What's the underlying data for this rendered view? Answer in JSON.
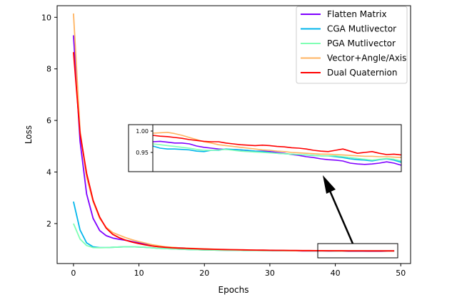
{
  "chart_data": {
    "type": "line",
    "title": "",
    "xlabel": "Epochs",
    "ylabel": "Loss",
    "xlim": [
      -2.5,
      51.5
    ],
    "ylim": [
      0.45,
      10.45
    ],
    "xticks": [
      0,
      10,
      20,
      30,
      40,
      50
    ],
    "xtick_labels": [
      "0",
      "10",
      "20",
      "30",
      "40",
      "50"
    ],
    "yticks": [
      2,
      4,
      6,
      8,
      10
    ],
    "ytick_labels": [
      "2",
      "4",
      "6",
      "8",
      "10"
    ],
    "grid": false,
    "legend_position": "upper right",
    "x": [
      0,
      1,
      2,
      3,
      4,
      5,
      6,
      7,
      8,
      9,
      10,
      11,
      12,
      13,
      14,
      15,
      16,
      17,
      18,
      19,
      20,
      21,
      22,
      23,
      24,
      25,
      26,
      27,
      28,
      29,
      30,
      31,
      32,
      33,
      34,
      35,
      36,
      37,
      38,
      39,
      40,
      41,
      42,
      43,
      44,
      45,
      46,
      47,
      48,
      49
    ],
    "series": [
      {
        "name": "Flatten Matrix",
        "color": "#7f00ff",
        "values": [
          9.3,
          5.2,
          3.15,
          2.2,
          1.73,
          1.53,
          1.44,
          1.39,
          1.35,
          1.3,
          1.25,
          1.2,
          1.15,
          1.12,
          1.09,
          1.07,
          1.06,
          1.05,
          1.03,
          1.02,
          1.01,
          1.0,
          0.99,
          0.985,
          0.975,
          0.975,
          0.97,
          0.965,
          0.96,
          0.96,
          0.955,
          0.955,
          0.95,
          0.95,
          0.945,
          0.94,
          0.94,
          0.935,
          0.935,
          0.93,
          0.93,
          0.93,
          0.925,
          0.925,
          0.925,
          0.925,
          0.925,
          0.925,
          0.93,
          0.93
        ]
      },
      {
        "name": "CGA Mutlivector",
        "color": "#00b5eb",
        "values": [
          2.85,
          1.75,
          1.25,
          1.1,
          1.07,
          1.07,
          1.08,
          1.09,
          1.1,
          1.1,
          1.09,
          1.08,
          1.06,
          1.04,
          1.03,
          1.02,
          1.01,
          1.0,
          0.99,
          0.985,
          0.975,
          0.975,
          0.97,
          0.965,
          0.96,
          0.96,
          0.955,
          0.955,
          0.955,
          0.95,
          0.95,
          0.95,
          0.948,
          0.948,
          0.945,
          0.945,
          0.943,
          0.943,
          0.942,
          0.942,
          0.94,
          0.94,
          0.938,
          0.938,
          0.938,
          0.938,
          0.938,
          0.938,
          0.938,
          0.938
        ]
      },
      {
        "name": "PGA Mutlivector",
        "color": "#80ffb4",
        "values": [
          2.0,
          1.4,
          1.15,
          1.07,
          1.06,
          1.07,
          1.08,
          1.09,
          1.1,
          1.1,
          1.09,
          1.08,
          1.06,
          1.04,
          1.03,
          1.02,
          1.01,
          1.0,
          0.99,
          0.985,
          0.975,
          0.975,
          0.97,
          0.965,
          0.96,
          0.96,
          0.955,
          0.955,
          0.955,
          0.95,
          0.95,
          0.95,
          0.948,
          0.948,
          0.945,
          0.945,
          0.943,
          0.943,
          0.942,
          0.942,
          0.94,
          0.94,
          0.938,
          0.938,
          0.938,
          0.938,
          0.938,
          0.938,
          0.938,
          0.938
        ]
      },
      {
        "name": "Vector+Angle/Axis",
        "color": "#ffb360",
        "values": [
          10.15,
          5.6,
          3.8,
          2.85,
          2.2,
          1.85,
          1.65,
          1.55,
          1.45,
          1.37,
          1.3,
          1.24,
          1.18,
          1.14,
          1.1,
          1.08,
          1.06,
          1.05,
          1.04,
          1.03,
          1.02,
          1.01,
          1.0,
          0.99,
          0.985,
          0.98,
          0.975,
          0.97,
          0.965,
          0.962,
          0.96,
          0.958,
          0.955,
          0.952,
          0.95,
          0.948,
          0.945,
          0.944,
          0.943,
          0.942,
          0.941,
          0.94,
          0.939,
          0.938,
          0.938,
          0.937,
          0.937,
          0.937,
          0.936,
          0.936
        ]
      },
      {
        "name": "Dual Quaternion",
        "color": "#ff0000",
        "values": [
          8.65,
          5.5,
          3.95,
          2.9,
          2.25,
          1.82,
          1.58,
          1.45,
          1.35,
          1.28,
          1.22,
          1.17,
          1.13,
          1.1,
          1.08,
          1.06,
          1.05,
          1.04,
          1.03,
          1.02,
          1.01,
          1.005,
          1.0,
          0.995,
          0.99,
          0.985,
          0.98,
          0.975,
          0.972,
          0.968,
          0.965,
          0.962,
          0.96,
          0.958,
          0.955,
          0.953,
          0.952,
          0.95,
          0.949,
          0.948,
          0.947,
          0.946,
          0.945,
          0.944,
          0.944,
          0.943,
          0.943,
          0.942,
          0.942,
          0.942
        ]
      }
    ],
    "inset": {
      "xlim": [
        37,
        49
      ],
      "ylim": [
        0.905,
        1.015
      ],
      "yticks": [
        0.95,
        1.0
      ],
      "ytick_labels": [
        "0.95",
        "1.00"
      ],
      "series": [
        {
          "name": "Flatten Matrix",
          "values": [
            0.975,
            0.976,
            0.974,
            0.972,
            0.972,
            0.97,
            0.965,
            0.962,
            0.96,
            0.958,
            0.957,
            0.957,
            0.956,
            0.954,
            0.953,
            0.953,
            0.952,
            0.95,
            0.948,
            0.945,
            0.943,
            0.94,
            0.938,
            0.935,
            0.933,
            0.932,
            0.93,
            0.925,
            0.923,
            0.922,
            0.923,
            0.925,
            0.928,
            0.925,
            0.92
          ]
        },
        {
          "name": "CGA Mutlivector",
          "values": [
            0.965,
            0.96,
            0.958,
            0.958,
            0.957,
            0.956,
            0.953,
            0.952,
            0.955,
            0.955,
            0.958,
            0.957,
            0.956,
            0.955,
            0.953,
            0.952,
            0.95,
            0.948,
            0.947,
            0.946,
            0.945,
            0.944,
            0.943,
            0.942,
            0.942,
            0.94,
            0.938,
            0.935,
            0.933,
            0.932,
            0.93,
            0.933,
            0.935,
            0.932,
            0.927
          ]
        },
        {
          "name": "PGA Mutlivector",
          "values": [
            0.97,
            0.968,
            0.966,
            0.964,
            0.962,
            0.96,
            0.957,
            0.955,
            0.955,
            0.956,
            0.957,
            0.955,
            0.953,
            0.952,
            0.951,
            0.95,
            0.949,
            0.948,
            0.947,
            0.946,
            0.945,
            0.944,
            0.943,
            0.942,
            0.942,
            0.942,
            0.94,
            0.938,
            0.936,
            0.934,
            0.932,
            0.934,
            0.936,
            0.934,
            0.93
          ]
        },
        {
          "name": "Vector+Angle/Axis",
          "values": [
            0.995,
            0.996,
            0.997,
            0.994,
            0.99,
            0.985,
            0.98,
            0.975,
            0.972,
            0.968,
            0.966,
            0.964,
            0.962,
            0.96,
            0.958,
            0.956,
            0.955,
            0.953,
            0.952,
            0.95,
            0.949,
            0.948,
            0.947,
            0.946,
            0.946,
            0.945,
            0.944,
            0.943,
            0.942,
            0.941,
            0.941,
            0.94,
            0.94,
            0.939,
            0.938
          ]
        },
        {
          "name": "Dual Quaternion",
          "values": [
            0.99,
            0.988,
            0.987,
            0.985,
            0.983,
            0.98,
            0.978,
            0.976,
            0.975,
            0.975,
            0.972,
            0.97,
            0.968,
            0.967,
            0.966,
            0.967,
            0.966,
            0.964,
            0.963,
            0.961,
            0.96,
            0.958,
            0.955,
            0.953,
            0.952,
            0.955,
            0.958,
            0.953,
            0.948,
            0.95,
            0.952,
            0.948,
            0.945,
            0.946,
            0.944
          ]
        }
      ]
    }
  }
}
